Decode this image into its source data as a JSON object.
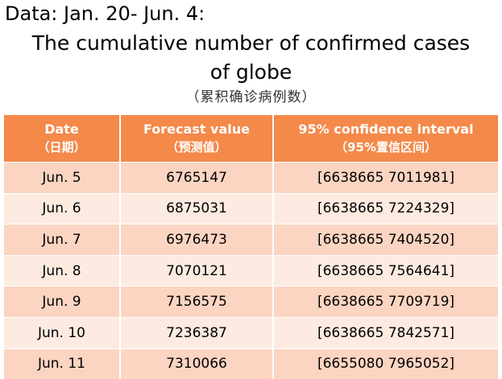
{
  "header": {
    "data_range": "Data: Jan. 20- Jun. 4:",
    "title_line1": "The cumulative number of confirmed cases",
    "title_line2": "of  globe",
    "subtitle": "（累积确诊病例数）"
  },
  "table": {
    "columns": [
      {
        "label": "Date",
        "sub": "（日期）"
      },
      {
        "label": "Forecast value",
        "sub": "（预测值）"
      },
      {
        "label": "95% confidence interval",
        "sub": "（95%置信区间）"
      }
    ],
    "rows": [
      {
        "date": "Jun. 5",
        "forecast": "6765147",
        "ci": "[6638665 7011981]"
      },
      {
        "date": "Jun. 6",
        "forecast": "6875031",
        "ci": "[6638665 7224329]"
      },
      {
        "date": "Jun. 7",
        "forecast": "6976473",
        "ci": "[6638665 7404520]"
      },
      {
        "date": "Jun. 8",
        "forecast": "7070121",
        "ci": "[6638665 7564641]"
      },
      {
        "date": "Jun. 9",
        "forecast": "7156575",
        "ci": "[6638665 7709719]"
      },
      {
        "date": "Jun. 10",
        "forecast": "7236387",
        "ci": "[6638665 7842571]"
      },
      {
        "date": "Jun. 11",
        "forecast": "7310066",
        "ci": "[6655080 7965052]"
      }
    ]
  },
  "colors": {
    "header_bg": "#f4894a",
    "row_odd_bg": "#fbd5c2",
    "row_even_bg": "#fdebe1"
  }
}
